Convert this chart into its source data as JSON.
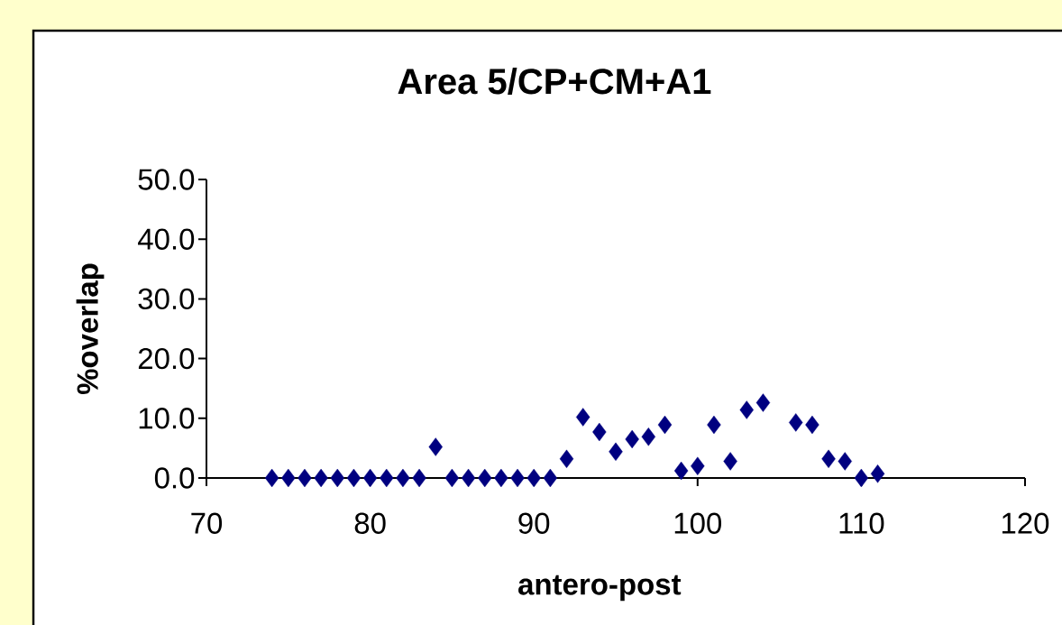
{
  "chart_data": {
    "type": "scatter",
    "title": "Area 5/CP+CM+A1",
    "xlabel": "antero-post",
    "ylabel": "%overlap",
    "x": [
      74,
      75,
      76,
      77,
      78,
      79,
      80,
      81,
      82,
      83,
      84,
      85,
      86,
      87,
      88,
      89,
      90,
      91,
      92,
      93,
      94,
      95,
      96,
      97,
      98,
      99,
      100,
      101,
      102,
      103,
      104,
      106,
      107,
      108,
      109,
      110,
      111
    ],
    "values": [
      0,
      0,
      0,
      0,
      0,
      0,
      0,
      0,
      0,
      0,
      5.2,
      0,
      0,
      0,
      0,
      0,
      0,
      0,
      3.2,
      10.2,
      7.7,
      4.4,
      6.5,
      6.9,
      8.9,
      1.2,
      2.0,
      8.9,
      2.8,
      11.4,
      12.6,
      9.3,
      8.9,
      3.2,
      2.8,
      0,
      0.7
    ],
    "color": "#000080",
    "marker": "diamond",
    "xlim": [
      70,
      120
    ],
    "xticks": [
      70,
      80,
      90,
      100,
      110,
      120
    ],
    "ylim": [
      0,
      50
    ],
    "yticks": [
      {
        "value": 0,
        "label": "0.0"
      },
      {
        "value": 10,
        "label": "10.0"
      },
      {
        "value": 20,
        "label": "20.0"
      },
      {
        "value": 30,
        "label": "30.0"
      },
      {
        "value": 40,
        "label": "40.0"
      },
      {
        "value": 50,
        "label": "50.0"
      }
    ],
    "grid": false
  }
}
